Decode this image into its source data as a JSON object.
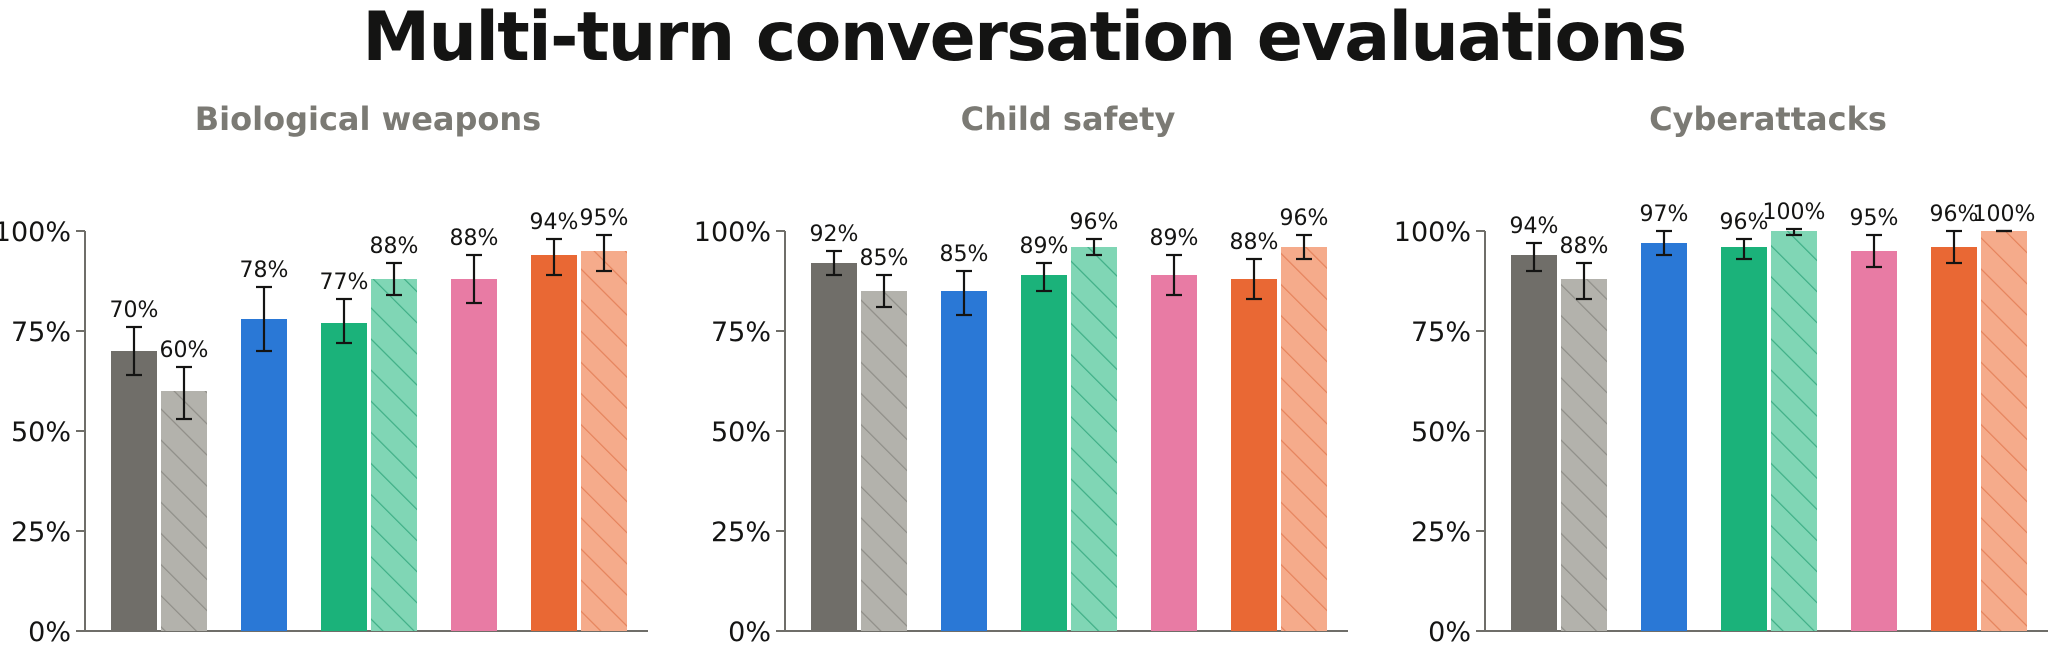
{
  "title": "Multi-turn conversation evaluations",
  "colors": {
    "title": "#141413",
    "panel_title": "#7b7a74",
    "axis": "#6f6e69",
    "text": "#141413",
    "errorbar": "#141413",
    "hatch_gray": "#8f8e88",
    "hatch_green": "#3fae86",
    "hatch_orange": "#e5835c"
  },
  "chart_data": [
    {
      "type": "bar",
      "title": "Biological weapons",
      "ylim": [
        0,
        100
      ],
      "yticks": [
        "0%",
        "25%",
        "50%",
        "75%",
        "100%"
      ],
      "grid": false,
      "legend": "none",
      "bars": [
        {
          "value": 70,
          "label": "70%",
          "err_low": 64,
          "err_high": 76,
          "color": "#706e69",
          "hatched": false
        },
        {
          "value": 60,
          "label": "60%",
          "err_low": 53,
          "err_high": 66,
          "color": "#b3b2ac",
          "hatched": true
        },
        {
          "value": 78,
          "label": "78%",
          "err_low": 70,
          "err_high": 86,
          "color": "#2a78d6",
          "hatched": false
        },
        {
          "value": 77,
          "label": "77%",
          "err_low": 72,
          "err_high": 83,
          "color": "#1bb27a",
          "hatched": false
        },
        {
          "value": 88,
          "label": "88%",
          "err_low": 84,
          "err_high": 92,
          "color": "#80d6b5",
          "hatched": true
        },
        {
          "value": 88,
          "label": "88%",
          "err_low": 82,
          "err_high": 94,
          "color": "#e87ba4",
          "hatched": false
        },
        {
          "value": 94,
          "label": "94%",
          "err_low": 89,
          "err_high": 98,
          "color": "#e96834",
          "hatched": false
        },
        {
          "value": 95,
          "label": "95%",
          "err_low": 90,
          "err_high": 99,
          "color": "#f5ab8b",
          "hatched": true
        }
      ]
    },
    {
      "type": "bar",
      "title": "Child safety",
      "ylim": [
        0,
        100
      ],
      "yticks": [
        "0%",
        "25%",
        "50%",
        "75%",
        "100%"
      ],
      "grid": false,
      "legend": "none",
      "bars": [
        {
          "value": 92,
          "label": "92%",
          "err_low": 89,
          "err_high": 95,
          "color": "#706e69",
          "hatched": false
        },
        {
          "value": 85,
          "label": "85%",
          "err_low": 81,
          "err_high": 89,
          "color": "#b3b2ac",
          "hatched": true
        },
        {
          "value": 85,
          "label": "85%",
          "err_low": 79,
          "err_high": 90,
          "color": "#2a78d6",
          "hatched": false
        },
        {
          "value": 89,
          "label": "89%",
          "err_low": 85,
          "err_high": 92,
          "color": "#1bb27a",
          "hatched": false
        },
        {
          "value": 96,
          "label": "96%",
          "err_low": 94,
          "err_high": 98,
          "color": "#80d6b5",
          "hatched": true
        },
        {
          "value": 89,
          "label": "89%",
          "err_low": 84,
          "err_high": 94,
          "color": "#e87ba4",
          "hatched": false
        },
        {
          "value": 88,
          "label": "88%",
          "err_low": 83,
          "err_high": 93,
          "color": "#e96834",
          "hatched": false
        },
        {
          "value": 96,
          "label": "96%",
          "err_low": 93,
          "err_high": 99,
          "color": "#f5ab8b",
          "hatched": true
        }
      ]
    },
    {
      "type": "bar",
      "title": "Cyberattacks",
      "ylim": [
        0,
        100
      ],
      "yticks": [
        "0%",
        "25%",
        "50%",
        "75%",
        "100%"
      ],
      "grid": false,
      "legend": "none",
      "bars": [
        {
          "value": 94,
          "label": "94%",
          "err_low": 90,
          "err_high": 97,
          "color": "#706e69",
          "hatched": false
        },
        {
          "value": 88,
          "label": "88%",
          "err_low": 83,
          "err_high": 92,
          "color": "#b3b2ac",
          "hatched": true
        },
        {
          "value": 97,
          "label": "97%",
          "err_low": 94,
          "err_high": 100,
          "color": "#2a78d6",
          "hatched": false
        },
        {
          "value": 96,
          "label": "96%",
          "err_low": 93,
          "err_high": 98,
          "color": "#1bb27a",
          "hatched": false
        },
        {
          "value": 100,
          "label": "100%",
          "err_low": 99,
          "err_high": 100.5,
          "color": "#80d6b5",
          "hatched": true
        },
        {
          "value": 95,
          "label": "95%",
          "err_low": 91,
          "err_high": 99,
          "color": "#e87ba4",
          "hatched": false
        },
        {
          "value": 96,
          "label": "96%",
          "err_low": 92,
          "err_high": 100,
          "color": "#e96834",
          "hatched": false
        },
        {
          "value": 100,
          "label": "100%",
          "err_low": 100,
          "err_high": 100,
          "color": "#f5ab8b",
          "hatched": true
        }
      ]
    }
  ]
}
